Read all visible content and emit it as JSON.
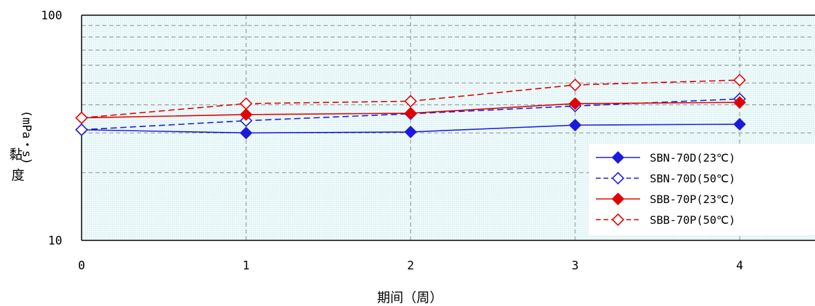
{
  "chart_data": {
    "type": "line",
    "xlabel": "期间（周）",
    "ylabel_unit": "(mPa・s)",
    "ylabel": "黏度",
    "yscale": "log",
    "ylim": [
      10,
      100
    ],
    "xlim": [
      0,
      4.5
    ],
    "x_ticks": [
      "0",
      "1",
      "2",
      "3",
      "4"
    ],
    "y_ticks": [
      "10",
      "100"
    ],
    "grid": true,
    "legend_position": "bottom-right",
    "x": [
      0,
      1,
      2,
      3,
      4
    ],
    "series": [
      {
        "name": "SBN-70D(23℃)",
        "color": "#1a1adc",
        "dash": "solid",
        "marker": "diamond-filled",
        "values": [
          31.0,
          30.0,
          30.3,
          32.5,
          32.8
        ]
      },
      {
        "name": "SBN-70D(50℃)",
        "color": "#1a1adc",
        "dash": "dashed",
        "marker": "diamond-open",
        "values": [
          31.0,
          34.0,
          36.5,
          39.5,
          42.5
        ]
      },
      {
        "name": "SBB-70P(23℃)",
        "color": "#e00000",
        "dash": "solid",
        "marker": "diamond-filled",
        "values": [
          35.0,
          36.2,
          36.7,
          40.5,
          41.0
        ]
      },
      {
        "name": "SBB-70P(50℃)",
        "color": "#e00000",
        "dash": "dashed",
        "marker": "diamond-open",
        "values": [
          35.0,
          40.5,
          41.5,
          49.0,
          51.5
        ]
      }
    ]
  }
}
